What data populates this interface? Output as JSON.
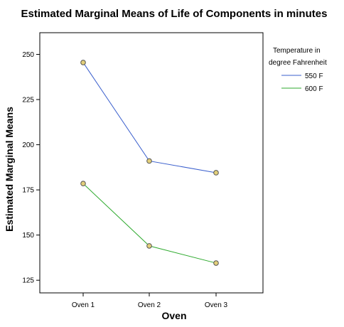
{
  "chart_data": {
    "type": "line",
    "title": "Estimated Marginal Means of Life of Components in minutes",
    "xlabel": "Oven",
    "ylabel": "Estimated Marginal Means",
    "categories": [
      "Oven 1",
      "Oven 2",
      "Oven 3"
    ],
    "ylim": [
      118,
      262
    ],
    "yticks": [
      125,
      150,
      175,
      200,
      225,
      250
    ],
    "grid": false,
    "legend": {
      "title_lines": [
        "Temperature in",
        "degree Fahrenheit"
      ],
      "placement": "right-outside"
    },
    "series": [
      {
        "name": "550 F",
        "values": [
          245.5,
          191,
          184.5
        ],
        "color": "#3a5fcd"
      },
      {
        "name": "600 F",
        "values": [
          178.5,
          144,
          134.5
        ],
        "color": "#2eaa2e"
      }
    ],
    "marker_color": "#e2cf7a"
  }
}
